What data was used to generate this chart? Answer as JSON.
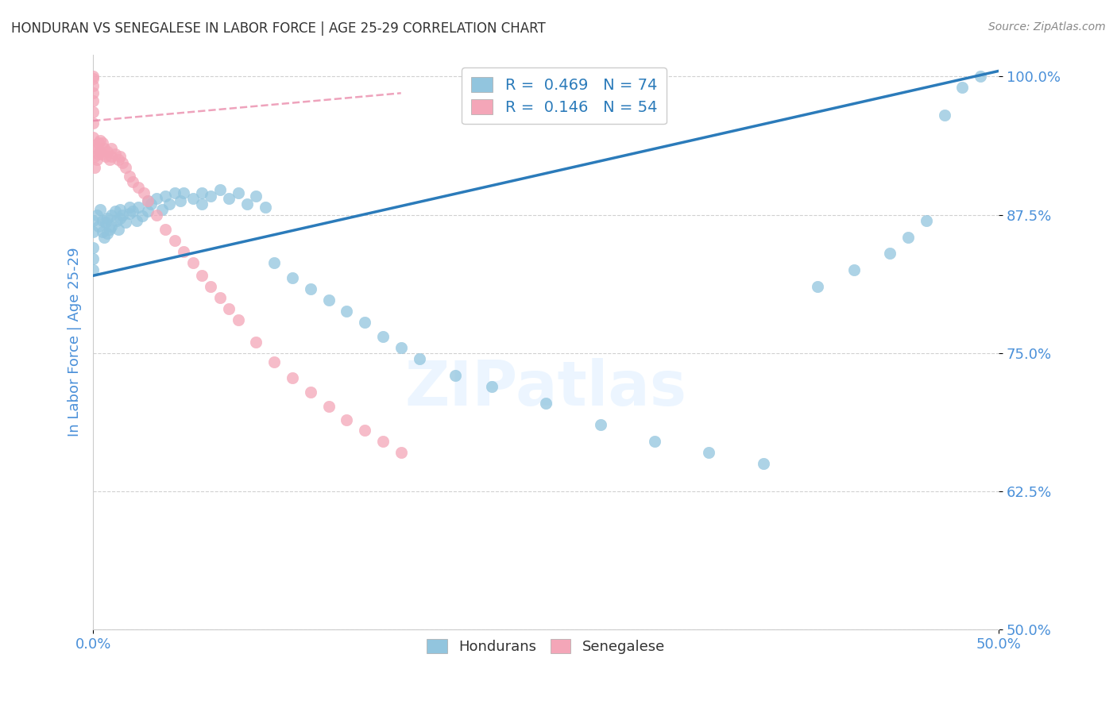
{
  "title": "HONDURAN VS SENEGALESE IN LABOR FORCE | AGE 25-29 CORRELATION CHART",
  "source": "Source: ZipAtlas.com",
  "ylabel": "In Labor Force | Age 25-29",
  "ytick_labels": [
    "50.0%",
    "62.5%",
    "75.0%",
    "87.5%",
    "100.0%"
  ],
  "ytick_values": [
    0.5,
    0.625,
    0.75,
    0.875,
    1.0
  ],
  "xmin": 0.0,
  "xmax": 0.5,
  "ymin": 0.5,
  "ymax": 1.02,
  "watermark": "ZIPatlas",
  "blue_color": "#92c5de",
  "pink_color": "#f4a6b8",
  "blue_line_color": "#2b7bba",
  "pink_line_color": "#e87ca0",
  "axis_label_color": "#4a90d9",
  "hondurans_x": [
    0.0,
    0.0,
    0.0,
    0.0,
    0.0,
    0.002,
    0.003,
    0.004,
    0.005,
    0.005,
    0.006,
    0.007,
    0.008,
    0.008,
    0.009,
    0.01,
    0.01,
    0.012,
    0.013,
    0.014,
    0.015,
    0.015,
    0.016,
    0.018,
    0.02,
    0.02,
    0.022,
    0.024,
    0.025,
    0.027,
    0.03,
    0.03,
    0.032,
    0.035,
    0.038,
    0.04,
    0.042,
    0.045,
    0.048,
    0.05,
    0.055,
    0.06,
    0.06,
    0.065,
    0.07,
    0.075,
    0.08,
    0.085,
    0.09,
    0.095,
    0.1,
    0.11,
    0.12,
    0.13,
    0.14,
    0.15,
    0.16,
    0.17,
    0.18,
    0.2,
    0.22,
    0.25,
    0.28,
    0.31,
    0.34,
    0.37,
    0.4,
    0.42,
    0.44,
    0.45,
    0.46,
    0.47,
    0.48,
    0.49
  ],
  "hondurans_y": [
    0.87,
    0.86,
    0.845,
    0.835,
    0.825,
    0.875,
    0.865,
    0.88,
    0.87,
    0.86,
    0.855,
    0.868,
    0.872,
    0.858,
    0.862,
    0.875,
    0.865,
    0.878,
    0.87,
    0.862,
    0.88,
    0.872,
    0.875,
    0.868,
    0.882,
    0.876,
    0.878,
    0.87,
    0.882,
    0.874,
    0.888,
    0.878,
    0.885,
    0.89,
    0.88,
    0.892,
    0.885,
    0.895,
    0.888,
    0.895,
    0.89,
    0.895,
    0.885,
    0.892,
    0.898,
    0.89,
    0.895,
    0.885,
    0.892,
    0.882,
    0.832,
    0.818,
    0.808,
    0.798,
    0.788,
    0.778,
    0.765,
    0.755,
    0.745,
    0.73,
    0.72,
    0.705,
    0.685,
    0.67,
    0.66,
    0.65,
    0.81,
    0.825,
    0.84,
    0.855,
    0.87,
    0.965,
    0.99,
    1.0
  ],
  "senegalese_x": [
    0.0,
    0.0,
    0.0,
    0.0,
    0.0,
    0.0,
    0.0,
    0.0,
    0.001,
    0.001,
    0.001,
    0.002,
    0.002,
    0.003,
    0.003,
    0.004,
    0.004,
    0.005,
    0.005,
    0.006,
    0.007,
    0.008,
    0.009,
    0.01,
    0.01,
    0.012,
    0.014,
    0.015,
    0.016,
    0.018,
    0.02,
    0.022,
    0.025,
    0.028,
    0.03,
    0.035,
    0.04,
    0.045,
    0.05,
    0.055,
    0.06,
    0.065,
    0.07,
    0.075,
    0.08,
    0.09,
    0.1,
    0.11,
    0.12,
    0.13,
    0.14,
    0.15,
    0.16,
    0.17
  ],
  "senegalese_y": [
    1.0,
    0.998,
    0.992,
    0.985,
    0.978,
    0.968,
    0.958,
    0.945,
    0.938,
    0.928,
    0.918,
    0.935,
    0.925,
    0.94,
    0.93,
    0.942,
    0.932,
    0.94,
    0.93,
    0.935,
    0.928,
    0.932,
    0.925,
    0.935,
    0.928,
    0.93,
    0.925,
    0.928,
    0.922,
    0.918,
    0.91,
    0.905,
    0.9,
    0.895,
    0.888,
    0.875,
    0.862,
    0.852,
    0.842,
    0.832,
    0.82,
    0.81,
    0.8,
    0.79,
    0.78,
    0.76,
    0.742,
    0.728,
    0.715,
    0.702,
    0.69,
    0.68,
    0.67,
    0.66
  ],
  "blue_line_x0": 0.0,
  "blue_line_y0": 0.82,
  "blue_line_x1": 0.5,
  "blue_line_y1": 1.005,
  "pink_line_x0": 0.0,
  "pink_line_y0": 0.96,
  "pink_line_x1": 0.17,
  "pink_line_y1": 0.985
}
